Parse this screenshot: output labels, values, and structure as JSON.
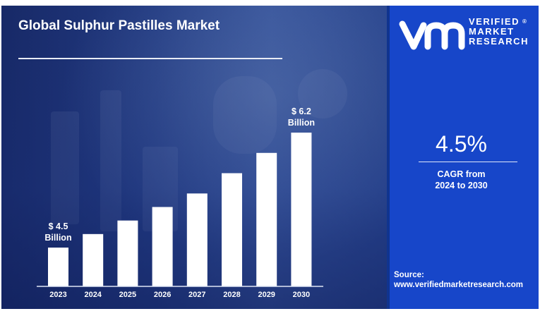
{
  "title": "Global Sulphur Pastilles Market",
  "chart_data": {
    "type": "bar",
    "categories": [
      "2023",
      "2024",
      "2025",
      "2026",
      "2027",
      "2028",
      "2029",
      "2030"
    ],
    "values": [
      4.5,
      4.7,
      4.9,
      5.1,
      5.3,
      5.6,
      5.9,
      6.2
    ],
    "annotations": [
      {
        "category": "2023",
        "line1": "$ 4.5",
        "line2": "Billion"
      },
      {
        "category": "2030",
        "line1": "$ 6.2",
        "line2": "Billion"
      }
    ],
    "xlabel": "",
    "ylabel": "",
    "bar_color": "#ffffff",
    "grid": false
  },
  "brand": {
    "line1": "VERIFIED",
    "line2": "MARKET",
    "line3": "RESEARCH",
    "registered": "®",
    "color": "#1746c9"
  },
  "cagr": {
    "value": "4.5%",
    "label_line1": "CAGR from",
    "label_line2": "2024 to 2030"
  },
  "source": {
    "label": "Source:",
    "url": "www.verifiedmarketresearch.com"
  }
}
